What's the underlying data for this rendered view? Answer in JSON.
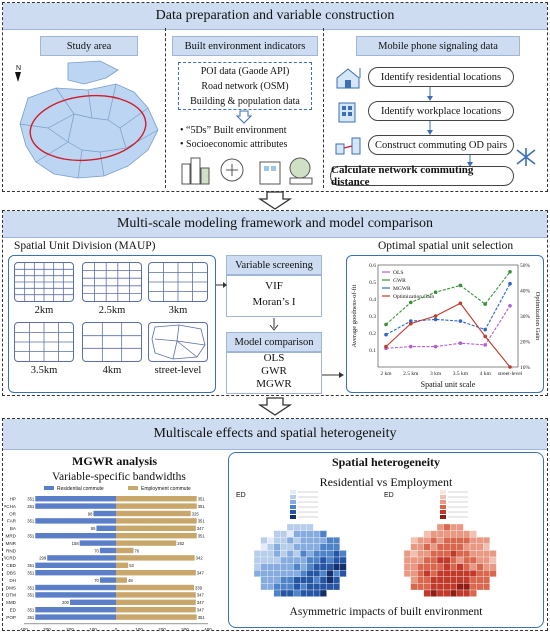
{
  "sections": {
    "s1_title": "Data preparation and variable construction",
    "s2_title": "Multi-scale modeling framework and model comparison",
    "s3_title": "Multiscale effects and spatial heterogeneity"
  },
  "study_area": {
    "title": "Study area",
    "north": "N"
  },
  "built_env": {
    "title": "Built environment indicators",
    "sources": [
      "POI data (Gaode API)",
      "Road network (OSM)",
      "Building & population data"
    ],
    "bullets": [
      "“5Ds” Built environment",
      "Socioeconomic attributes"
    ]
  },
  "mobile": {
    "title": "Mobile phone signaling data",
    "steps": [
      "Identify residential locations",
      "Identify workplace locations",
      "Construct commuting OD pairs",
      "Calculate network commuting distance"
    ]
  },
  "spatial_unit": {
    "title": "Spatial Unit Division (MAUP)",
    "tiles": [
      "2km",
      "2.5km",
      "3km",
      "3.5km",
      "4km",
      "street-level"
    ]
  },
  "variable_screening": {
    "title": "Variable screening",
    "items": [
      "VIF",
      "Moran’s I"
    ]
  },
  "model_comparison": {
    "title": "Model comparison",
    "items": [
      "OLS",
      "GWR",
      "MGWR"
    ]
  },
  "optimal": {
    "title": "Optimal spatial unit selection"
  },
  "mgwr": {
    "title": "MGWR analysis",
    "subtitle": "Variable-specific bandwidths"
  },
  "heterogeneity": {
    "title": "Spatial heterogeneity",
    "compare": "Residential  vs  Employment",
    "ed_left": "ED",
    "ed_right": "ED",
    "caption": "Asymmetric impacts of built environment"
  },
  "chart_data": [
    {
      "type": "line",
      "title": "",
      "categories": [
        "2 km",
        "2.5 km",
        "3 km",
        "3.5 km",
        "4 km",
        "street-level"
      ],
      "xlabel": "Spatial unit scale",
      "ylabel": "Average goodness-of-fit",
      "y2label": "Optimization Gain",
      "ylim": [
        0.0,
        0.6
      ],
      "y2lim": [
        10,
        50
      ],
      "yticks": [
        "0.1",
        "0.2",
        "0.3",
        "0.4",
        "0.5",
        "0.6"
      ],
      "y2ticks": [
        "10%",
        "20%",
        "30%",
        "40%",
        "50%"
      ],
      "legend_position": "top-left",
      "series": [
        {
          "name": "OLS",
          "color": "#b05fd0",
          "axis": "left",
          "values": [
            0.11,
            0.12,
            0.12,
            0.14,
            0.13,
            0.36
          ]
        },
        {
          "name": "GWR",
          "color": "#3a8f3a",
          "axis": "left",
          "values": [
            0.25,
            0.38,
            0.44,
            0.48,
            0.37,
            0.56
          ]
        },
        {
          "name": "MGWR",
          "color": "#2a66c9",
          "axis": "left",
          "values": [
            0.19,
            0.27,
            0.28,
            0.27,
            0.22,
            0.49
          ]
        },
        {
          "name": "Optimization Gain",
          "color": "#c0392b",
          "axis": "right",
          "values": [
            18,
            27,
            30,
            35,
            22,
            10
          ]
        }
      ]
    },
    {
      "type": "bar",
      "title": "Variable-specific bandwidths",
      "legend": [
        "Residential commute",
        "Employment commute"
      ],
      "legend_position": "top",
      "categories": [
        "HP",
        "PCHA",
        "OR",
        "FAR",
        "BA",
        "MRD",
        "MNR",
        "RND",
        "RCRD",
        "CBD",
        "DBS",
        "DH",
        "DMS",
        "DTM",
        "SMD",
        "ED",
        "POP"
      ],
      "series": [
        {
          "name": "Residential commute",
          "color": "#5b7ec9",
          "values": [
            351,
            351,
            98,
            351,
            85,
            351,
            158,
            70,
            299,
            351,
            351,
            70,
            351,
            351,
            200,
            351,
            351
          ]
        },
        {
          "name": "Employment commute",
          "color": "#c9a76b",
          "values": [
            351,
            351,
            325,
            351,
            347,
            351,
            262,
            76,
            342,
            53,
            347,
            48,
            339,
            347,
            347,
            347,
            351
          ]
        }
      ],
      "xticks": [
        "400",
        "300",
        "200",
        "100",
        "0",
        "100",
        "200",
        "300",
        "400"
      ]
    }
  ]
}
